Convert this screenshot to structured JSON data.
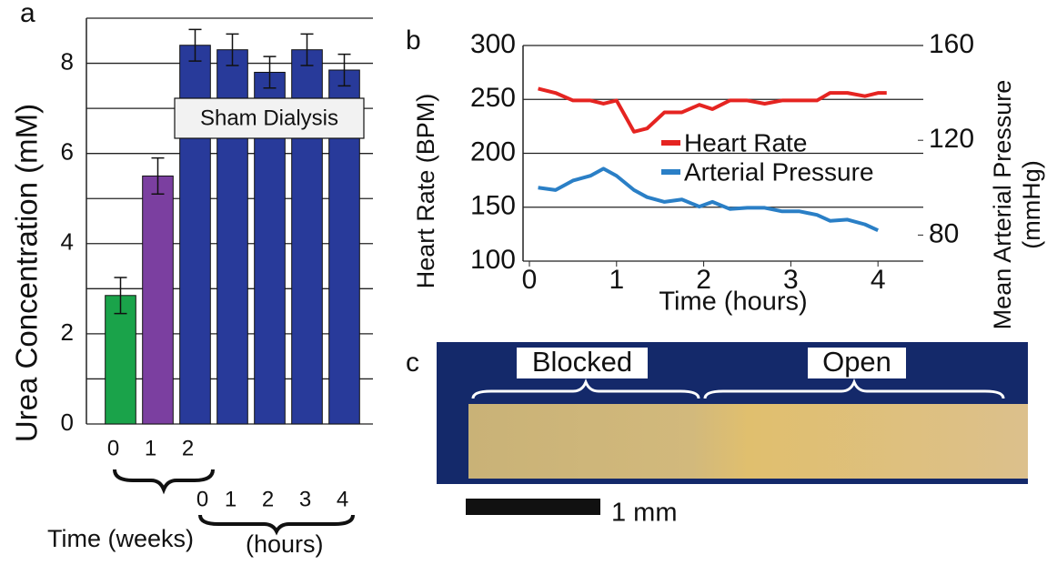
{
  "chart_data": [
    {
      "type": "bar",
      "panel_label": "a",
      "ylabel": "Urea Concentration (mM)",
      "annotation": "Sham Dialysis",
      "categories": [
        "0",
        "1",
        "2",
        null,
        null,
        null,
        null
      ],
      "hour_categories": [
        null,
        null,
        "0",
        "1",
        "2",
        "3",
        "4"
      ],
      "xlabel": "Time (weeks)",
      "hour_xlabel": "(hours)",
      "values": [
        2.85,
        5.5,
        8.4,
        8.3,
        7.8,
        8.3,
        7.85
      ],
      "errors": [
        0.4,
        0.4,
        0.35,
        0.35,
        0.35,
        0.35,
        0.35
      ],
      "colors": [
        "#1aa34a",
        "#7b3fa0",
        "#283a9a",
        "#283a9a",
        "#283a9a",
        "#283a9a",
        "#283a9a"
      ],
      "ylim": [
        0,
        9
      ],
      "yticks": [
        0,
        2,
        4,
        6,
        8
      ],
      "minor_grid": [
        1,
        3,
        5,
        7,
        9
      ],
      "grid": true
    },
    {
      "type": "line",
      "panel_label": "b",
      "xlabel": "Time (hours)",
      "ylabel": "Heart Rate (BPM)",
      "y2label": [
        "Mean Arterial Pressure",
        "(mmHg)"
      ],
      "xlim": [
        0,
        4.52
      ],
      "xticks": [
        0,
        1,
        2,
        3,
        4
      ],
      "ylim": [
        100,
        300
      ],
      "yticks": [
        100,
        150,
        200,
        250,
        300
      ],
      "y2lim": [
        69,
        160
      ],
      "y2ticks": [
        80,
        120,
        160
      ],
      "grid": true,
      "series": [
        {
          "name": "Heart Rate",
          "color": "#e52421",
          "x": [
            0.1,
            0.3,
            0.5,
            0.7,
            0.85,
            1.0,
            1.2,
            1.35,
            1.55,
            1.75,
            1.95,
            2.1,
            2.3,
            2.5,
            2.7,
            2.9,
            3.1,
            3.3,
            3.45,
            3.65,
            3.85,
            4.0,
            4.1
          ],
          "values": [
            260,
            256,
            249,
            249,
            246,
            249,
            220,
            223,
            238,
            238,
            245,
            241,
            249,
            249,
            246,
            249,
            249,
            249,
            256,
            256,
            253,
            256,
            256
          ]
        },
        {
          "name": "Arterial Pressure",
          "color": "#2a7fc6",
          "axis": "y2",
          "x": [
            0.1,
            0.3,
            0.5,
            0.7,
            0.85,
            1.0,
            1.2,
            1.35,
            1.55,
            1.75,
            1.95,
            2.1,
            2.3,
            2.5,
            2.7,
            2.9,
            3.1,
            3.3,
            3.45,
            3.65,
            3.85,
            4.0
          ],
          "values": [
            100,
            99,
            103,
            105,
            108,
            105,
            99,
            96,
            94,
            95,
            92,
            94,
            91,
            91.5,
            91.5,
            90,
            90,
            88.5,
            86,
            86.5,
            84.5,
            82
          ]
        }
      ]
    }
  ],
  "image_panel": {
    "label": "c",
    "regions": [
      "Blocked",
      "Open"
    ],
    "scale_bar": "1 mm"
  }
}
